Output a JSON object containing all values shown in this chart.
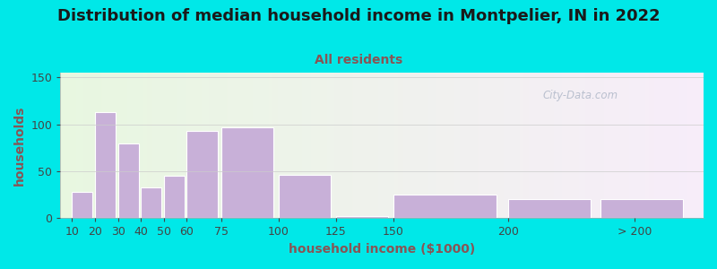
{
  "title": "Distribution of median household income in Montpelier, IN in 2022",
  "subtitle": "All residents",
  "xlabel": "household income ($1000)",
  "ylabel": "households",
  "bar_color": "#c8b0d8",
  "background_outer": "#00e8e8",
  "background_inner": "#e8f5e0",
  "yticks": [
    0,
    50,
    100,
    150
  ],
  "ylim": [
    0,
    155
  ],
  "positions": [
    10,
    20,
    30,
    40,
    50,
    60,
    75,
    100,
    125,
    150,
    200,
    240
  ],
  "widths": [
    10,
    10,
    10,
    10,
    10,
    15,
    25,
    25,
    25,
    50,
    40,
    40
  ],
  "values": [
    28,
    113,
    80,
    33,
    45,
    93,
    97,
    46,
    2,
    25,
    20,
    20
  ],
  "title_fontsize": 13,
  "subtitle_fontsize": 10,
  "axis_label_fontsize": 10,
  "tick_fontsize": 9,
  "title_color": "#1a1a1a",
  "subtitle_color": "#885555",
  "axis_label_color": "#885555",
  "tick_color": "#444444",
  "watermark": "City-Data.com",
  "xlim": [
    5,
    285
  ]
}
